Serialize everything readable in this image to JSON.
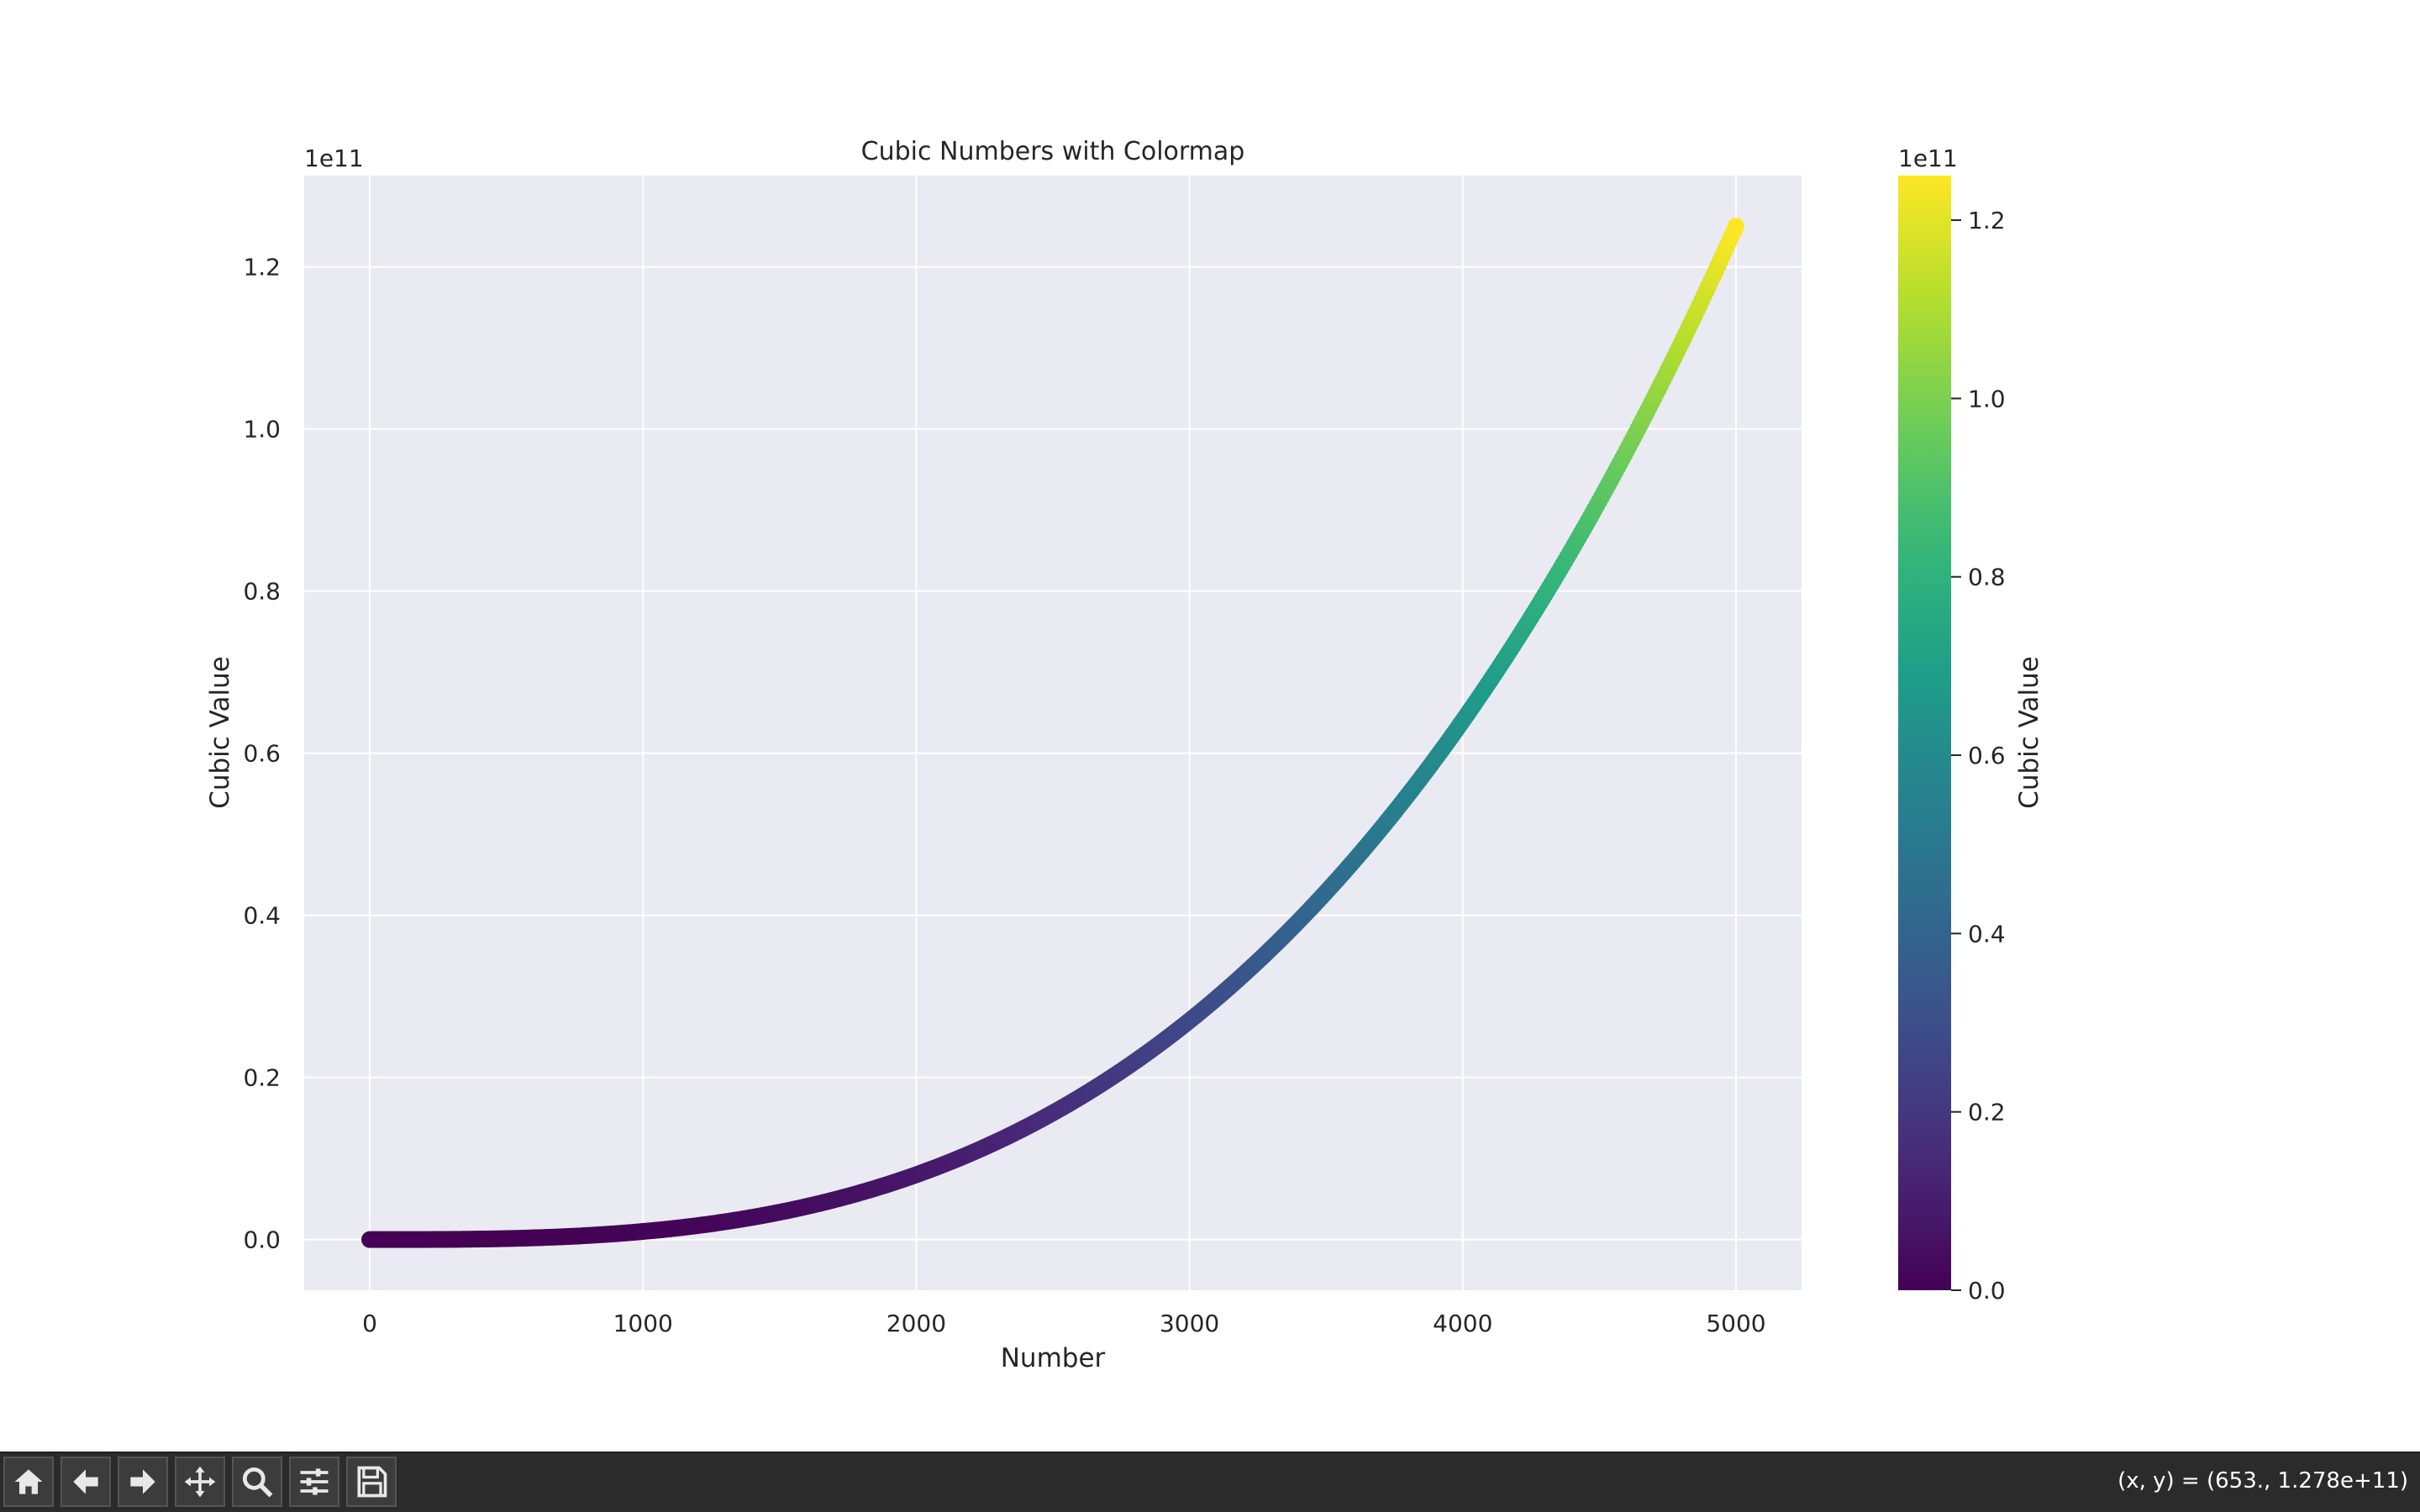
{
  "chart_data": {
    "type": "scatter",
    "title": "Cubic Numbers with Colormap",
    "xlabel": "Number",
    "ylabel": "Cubic Value",
    "x_range": [
      0,
      5000
    ],
    "y_function": "x^3",
    "xlim": [
      -240,
      5240
    ],
    "ylim": [
      -6250000000.0,
      131250000000.0
    ],
    "xticks": [
      0,
      1000,
      2000,
      3000,
      4000,
      5000
    ],
    "xtick_labels": [
      "0",
      "1000",
      "2000",
      "3000",
      "4000",
      "5000"
    ],
    "yticks": [
      0,
      20000000000.0,
      40000000000.0,
      60000000000.0,
      80000000000.0,
      100000000000.0,
      120000000000.0
    ],
    "ytick_labels": [
      "0.0",
      "0.2",
      "0.4",
      "0.6",
      "0.8",
      "1.0",
      "1.2"
    ],
    "y_offset_label": "1e11",
    "grid": true,
    "colormap": "viridis",
    "colorbar": {
      "label": "Cubic Value",
      "range": [
        0,
        125000000000.0
      ],
      "ticks": [
        0,
        20000000000.0,
        40000000000.0,
        60000000000.0,
        80000000000.0,
        100000000000.0,
        120000000000.0
      ],
      "tick_labels": [
        "0.0",
        "0.2",
        "0.4",
        "0.6",
        "0.8",
        "1.0",
        "1.2"
      ],
      "offset_label": "1e11"
    },
    "colors": {
      "axes_bg": "#eaeaf2",
      "grid": "#ffffff",
      "text": "#262626"
    }
  },
  "toolbar": {
    "buttons": [
      {
        "name": "home-button",
        "icon": "home-icon"
      },
      {
        "name": "back-button",
        "icon": "arrow-left-icon"
      },
      {
        "name": "forward-button",
        "icon": "arrow-right-icon"
      },
      {
        "name": "pan-button",
        "icon": "move-icon"
      },
      {
        "name": "zoom-button",
        "icon": "magnifier-icon"
      },
      {
        "name": "configure-subplots-button",
        "icon": "sliders-icon"
      },
      {
        "name": "save-button",
        "icon": "floppy-disk-icon"
      }
    ],
    "coords": "(x, y) = (653., 1.278e+11)"
  }
}
